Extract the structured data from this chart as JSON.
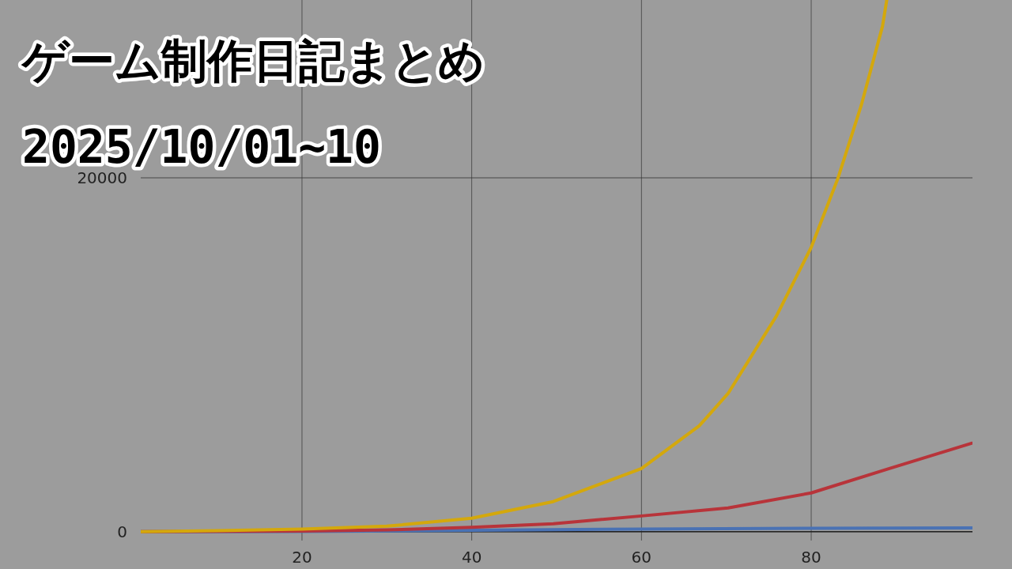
{
  "chart_data": {
    "type": "line",
    "title": "ゲーム制作日記まとめ",
    "subtitle": "2025/10/01~10",
    "xlim": [
      1,
      99
    ],
    "ylim": [
      -500,
      30050
    ],
    "xticks": [
      20,
      40,
      60,
      80
    ],
    "yticks": [
      0,
      20000
    ],
    "grid": true,
    "marker": "none",
    "line_style": "solid",
    "series": [
      {
        "color": "#d4a80c",
        "x": [
          1,
          10,
          20,
          30,
          40,
          49.6,
          60,
          66.8,
          70.2,
          75.9,
          80,
          83.1,
          85.9,
          88.4,
          88.9
        ],
        "values": [
          0,
          60,
          150,
          310,
          760,
          1700,
          3570,
          5980,
          7810,
          12190,
          16070,
          19910,
          24100,
          28570,
          30040
        ]
      },
      {
        "color": "#b8343a",
        "x": [
          1,
          20,
          30,
          40,
          49.6,
          60,
          70.2,
          80,
          89.2,
          98.9
        ],
        "values": [
          0,
          40,
          100,
          250,
          450,
          890,
          1340,
          2190,
          3570,
          5000
        ]
      },
      {
        "color": "#4a72b4",
        "x": [
          1,
          20,
          40,
          60,
          80,
          98.9
        ],
        "values": [
          0,
          10,
          80,
          150,
          190,
          220
        ]
      }
    ]
  }
}
